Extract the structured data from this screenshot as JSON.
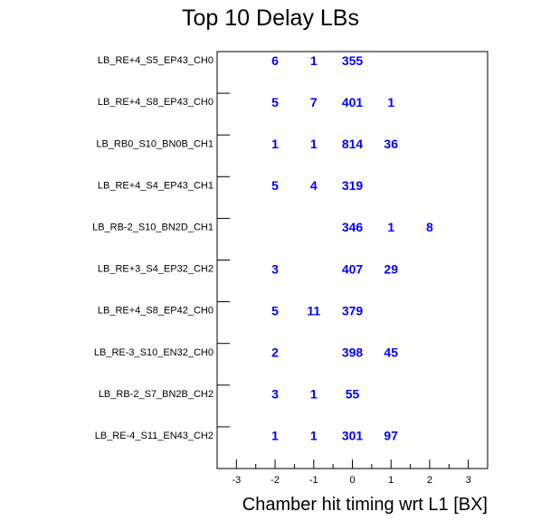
{
  "chart_data": {
    "type": "table",
    "title": "Top 10 Delay LBs",
    "xlabel": "Chamber hit timing wrt L1 [BX]",
    "ylabel": "",
    "xlim": [
      -3.5,
      3.5
    ],
    "x_ticks": [
      -3,
      -2,
      -1,
      0,
      1,
      2,
      3
    ],
    "text_color": "#0000ff",
    "rows": [
      "LB_RE+4_S5_EP43_CH0",
      "LB_RE+4_S8_EP43_CH0",
      "LB_RB0_S10_BN0B_CH1",
      "LB_RE+4_S4_EP43_CH1",
      "LB_RB-2_S10_BN2D_CH1",
      "LB_RE+3_S4_EP32_CH2",
      "LB_RE+4_S8_EP42_CH0",
      "LB_RE-3_S10_EN32_CH0",
      "LB_RB-2_S7_BN2B_CH2",
      "LB_RE-4_S11_EN43_CH2"
    ],
    "cells": [
      {
        "row": 0,
        "x": -2,
        "value": 6
      },
      {
        "row": 0,
        "x": -1,
        "value": 1
      },
      {
        "row": 0,
        "x": 0,
        "value": 355
      },
      {
        "row": 1,
        "x": -2,
        "value": 5
      },
      {
        "row": 1,
        "x": -1,
        "value": 7
      },
      {
        "row": 1,
        "x": 0,
        "value": 401
      },
      {
        "row": 1,
        "x": 1,
        "value": 1
      },
      {
        "row": 2,
        "x": -2,
        "value": 1
      },
      {
        "row": 2,
        "x": -1,
        "value": 1
      },
      {
        "row": 2,
        "x": 0,
        "value": 814
      },
      {
        "row": 2,
        "x": 1,
        "value": 36
      },
      {
        "row": 3,
        "x": -2,
        "value": 5
      },
      {
        "row": 3,
        "x": -1,
        "value": 4
      },
      {
        "row": 3,
        "x": 0,
        "value": 319
      },
      {
        "row": 4,
        "x": 0,
        "value": 346
      },
      {
        "row": 4,
        "x": 1,
        "value": 1
      },
      {
        "row": 4,
        "x": 2,
        "value": 8
      },
      {
        "row": 5,
        "x": -2,
        "value": 3
      },
      {
        "row": 5,
        "x": 0,
        "value": 407
      },
      {
        "row": 5,
        "x": 1,
        "value": 29
      },
      {
        "row": 6,
        "x": -2,
        "value": 5
      },
      {
        "row": 6,
        "x": -1,
        "value": 11
      },
      {
        "row": 6,
        "x": 0,
        "value": 379
      },
      {
        "row": 7,
        "x": -2,
        "value": 2
      },
      {
        "row": 7,
        "x": 0,
        "value": 398
      },
      {
        "row": 7,
        "x": 1,
        "value": 45
      },
      {
        "row": 8,
        "x": -2,
        "value": 3
      },
      {
        "row": 8,
        "x": -1,
        "value": 1
      },
      {
        "row": 8,
        "x": 0,
        "value": 55
      },
      {
        "row": 9,
        "x": -2,
        "value": 1
      },
      {
        "row": 9,
        "x": -1,
        "value": 1
      },
      {
        "row": 9,
        "x": 0,
        "value": 301
      },
      {
        "row": 9,
        "x": 1,
        "value": 97
      }
    ]
  }
}
